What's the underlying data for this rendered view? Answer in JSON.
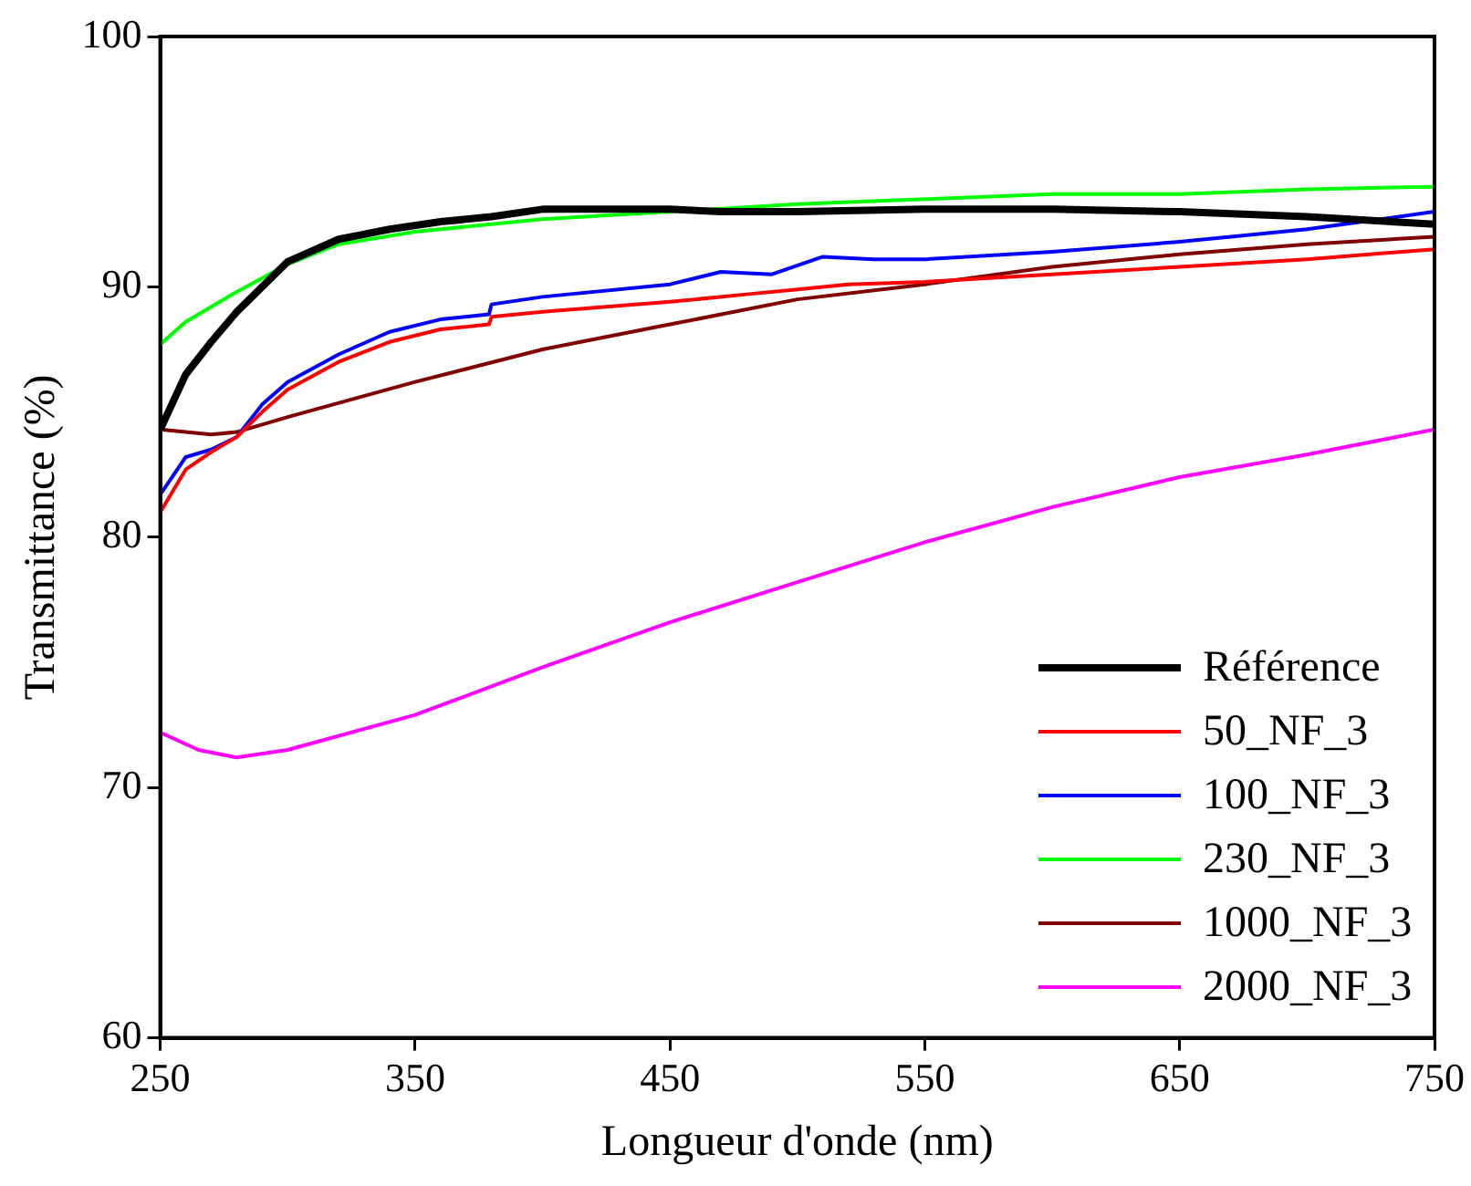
{
  "chart_data": {
    "type": "line",
    "xlabel": "Longueur d'onde (nm)",
    "ylabel": "Transmittance (%)",
    "xlim": [
      250,
      750
    ],
    "xticks": [
      250,
      350,
      450,
      550,
      650,
      750
    ],
    "ylim": [
      60,
      100
    ],
    "yticks": [
      60,
      70,
      80,
      90,
      100
    ],
    "grid": false,
    "legend": "bottom right",
    "marker": "none",
    "line_style": "solid",
    "series": [
      {
        "name": "Référence",
        "color": "#000000",
        "x": [
          250,
          260,
          270,
          280,
          290,
          300,
          320,
          340,
          360,
          380,
          400,
          450,
          470,
          500,
          550,
          600,
          650,
          700,
          750
        ],
        "values": [
          84.3,
          86.5,
          87.8,
          89,
          90,
          91,
          91.9,
          92.3,
          92.6,
          92.8,
          93.1,
          93.1,
          93.0,
          93.0,
          93.1,
          93.1,
          93.0,
          92.8,
          92.5
        ]
      },
      {
        "name": "50_NF_3",
        "color": "#ff0000",
        "x": [
          250,
          260,
          270,
          280,
          290,
          300,
          320,
          340,
          360,
          379,
          380,
          400,
          450,
          480,
          500,
          520,
          550,
          600,
          650,
          700,
          750
        ],
        "values": [
          81,
          82.7,
          83.4,
          84,
          85,
          85.9,
          87,
          87.8,
          88.3,
          88.5,
          88.8,
          89.0,
          89.4,
          89.7,
          89.9,
          90.1,
          90.2,
          90.5,
          90.8,
          91.1,
          91.5
        ]
      },
      {
        "name": "100_NF_3",
        "color": "#0000ff",
        "x": [
          250,
          260,
          270,
          280,
          290,
          300,
          320,
          340,
          360,
          379,
          380,
          400,
          450,
          470,
          490,
          510,
          530,
          550,
          600,
          650,
          700,
          750
        ],
        "values": [
          81.7,
          83.2,
          83.5,
          84.0,
          85.3,
          86.2,
          87.3,
          88.2,
          88.7,
          88.9,
          89.3,
          89.6,
          90.1,
          90.6,
          90.5,
          91.2,
          91.1,
          91.1,
          91.4,
          91.8,
          92.3,
          93.0
        ]
      },
      {
        "name": "230_NF_3",
        "color": "#00ff00",
        "x": [
          250,
          260,
          280,
          300,
          320,
          350,
          400,
          450,
          500,
          550,
          600,
          650,
          700,
          750
        ],
        "values": [
          87.7,
          88.6,
          89.8,
          90.9,
          91.7,
          92.2,
          92.7,
          93.0,
          93.3,
          93.5,
          93.7,
          93.7,
          93.9,
          94.0
        ]
      },
      {
        "name": "1000_NF_3",
        "color": "#800000",
        "x": [
          250,
          270,
          280,
          300,
          350,
          400,
          450,
          500,
          550,
          600,
          650,
          700,
          750
        ],
        "values": [
          84.3,
          84.1,
          84.2,
          84.8,
          86.2,
          87.5,
          88.5,
          89.5,
          90.1,
          90.8,
          91.3,
          91.7,
          92.0
        ]
      },
      {
        "name": "2000_NF_3",
        "color": "#ff00ff",
        "x": [
          250,
          265,
          280,
          300,
          350,
          400,
          450,
          500,
          550,
          600,
          650,
          700,
          750
        ],
        "values": [
          72.2,
          71.5,
          71.2,
          71.5,
          72.9,
          74.8,
          76.6,
          78.2,
          79.8,
          81.2,
          82.4,
          83.3,
          84.3
        ]
      }
    ]
  }
}
